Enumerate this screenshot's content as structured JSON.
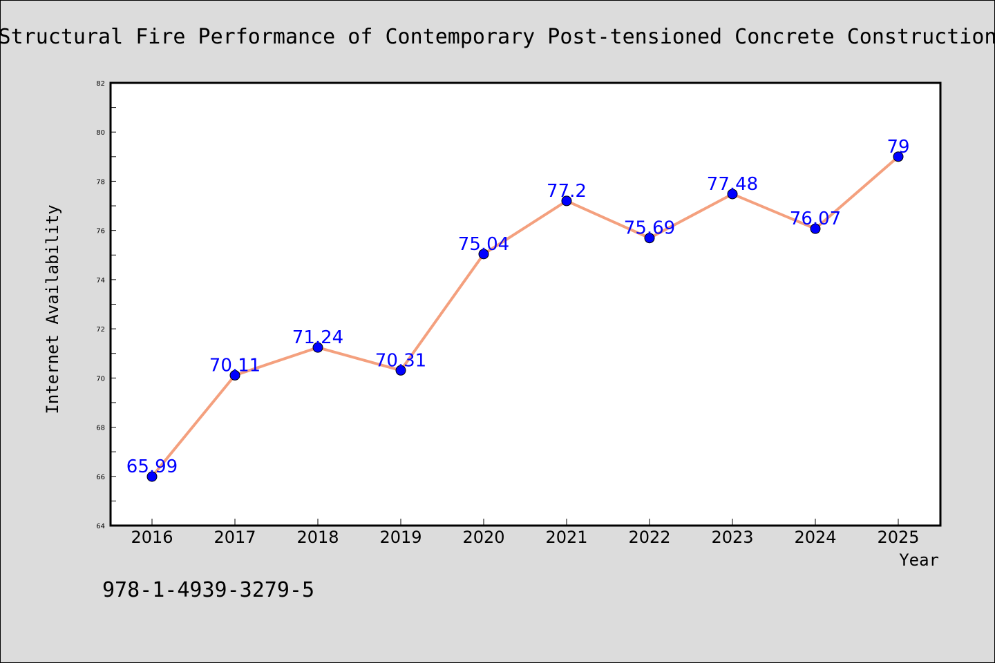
{
  "chart_data": {
    "type": "line",
    "title": "Structural Fire Performance of Contemporary Post-tensioned Concrete Construction",
    "xlabel": "Year",
    "ylabel": "Internet Availability",
    "categories": [
      "2016",
      "2017",
      "2018",
      "2019",
      "2020",
      "2021",
      "2022",
      "2023",
      "2024",
      "2025"
    ],
    "series": [
      {
        "values": [
          65.99,
          70.11,
          71.24,
          70.31,
          75.04,
          77.2,
          75.69,
          77.48,
          76.07,
          79
        ],
        "data_labels": [
          "65.99",
          "70.11",
          "71.24",
          "70.31",
          "75.04",
          "77.2",
          "75.69",
          "77.48",
          "76.07",
          "79"
        ]
      }
    ],
    "ylim": [
      64,
      82
    ],
    "yticks": [
      "64",
      "66",
      "68",
      "70",
      "72",
      "74",
      "76",
      "78",
      "80",
      "82"
    ],
    "grid": false,
    "legend": "none",
    "colors": {
      "line": "#f4a07e",
      "marker": "#0000ff",
      "data_label": "#0000ff",
      "background": "#dcdcdc",
      "plot_background": "#ffffff"
    }
  },
  "footer": {
    "isbn": "978-1-4939-3279-5"
  }
}
